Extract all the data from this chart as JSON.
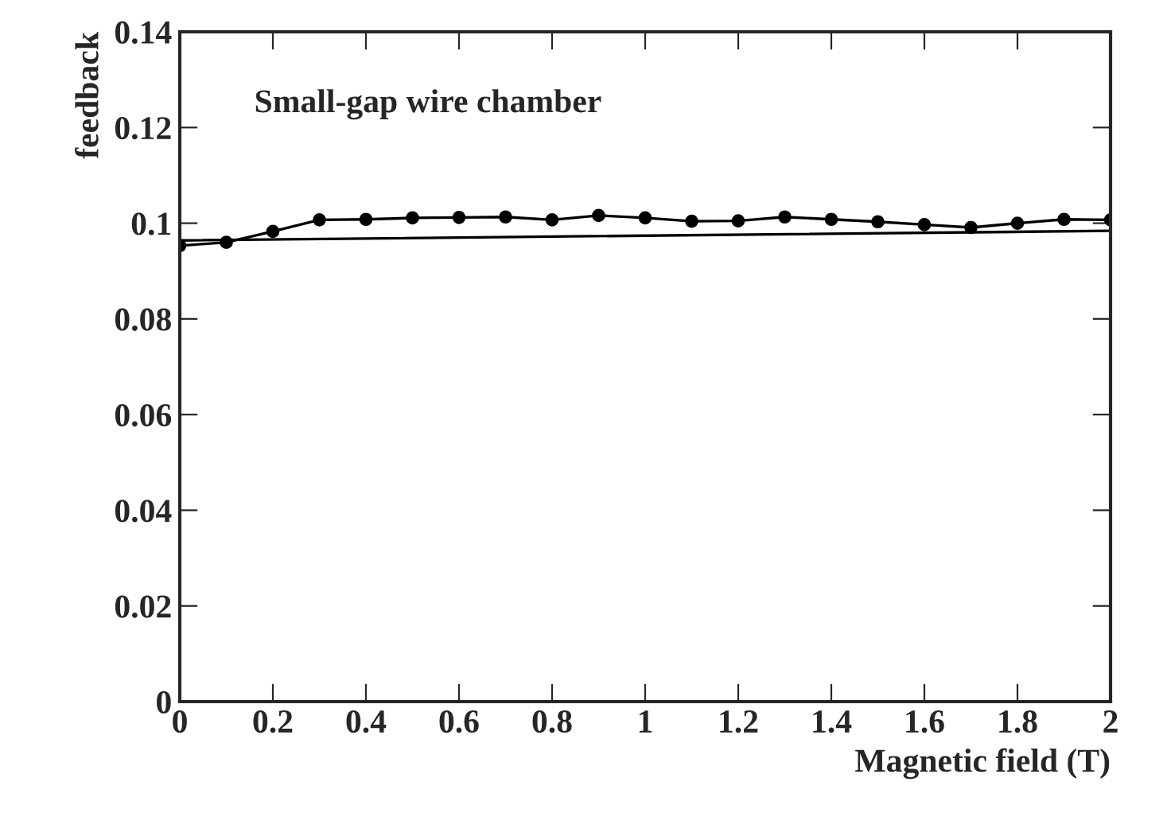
{
  "chart_data": {
    "type": "line",
    "xlabel": "Magnetic field (T)",
    "ylabel": "feedback",
    "annotations": [
      "Small-gap wire chamber"
    ],
    "x": [
      0,
      0.1,
      0.2,
      0.3,
      0.4,
      0.5,
      0.6,
      0.7,
      0.8,
      0.9,
      1.0,
      1.1,
      1.2,
      1.3,
      1.4,
      1.5,
      1.6,
      1.7,
      1.8,
      1.9,
      2.0
    ],
    "series": [
      {
        "color": "#000000",
        "marker": "circle",
        "values": [
          0.0953,
          0.096,
          0.0983,
          0.1007,
          0.1008,
          0.1011,
          0.1012,
          0.1013,
          0.1007,
          0.1016,
          0.1011,
          0.1004,
          0.1005,
          0.1013,
          0.1008,
          0.1003,
          0.0997,
          0.0991,
          0.1,
          0.1008,
          0.1007
        ]
      },
      {
        "color": "#000000",
        "marker": "none",
        "x": [
          0,
          2
        ],
        "values": [
          0.0964,
          0.0984
        ]
      }
    ],
    "xlim": [
      0,
      2
    ],
    "ylim": [
      0,
      0.14
    ],
    "xticks": [
      0,
      0.2,
      0.4,
      0.6,
      0.8,
      1,
      1.2,
      1.4,
      1.6,
      1.8,
      2
    ],
    "yticks": [
      0,
      0.02,
      0.04,
      0.06,
      0.08,
      0.1,
      0.12,
      0.14
    ],
    "grid": false,
    "legend": false,
    "line_style": "solid"
  }
}
